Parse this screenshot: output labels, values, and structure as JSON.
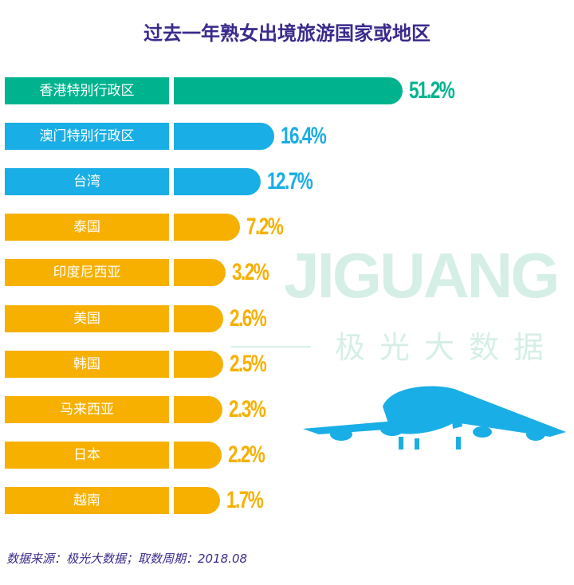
{
  "chart_data": {
    "type": "bar",
    "orientation": "horizontal",
    "title": "过去一年熟女出境旅游国家或地区",
    "categories": [
      "香港特别行政区",
      "澳门特别行政区",
      "台湾",
      "泰国",
      "印度尼西亚",
      "美国",
      "韩国",
      "马来西亚",
      "日本",
      "越南"
    ],
    "values": [
      51.2,
      16.4,
      12.7,
      7.2,
      3.2,
      2.6,
      2.5,
      2.3,
      2.2,
      1.7
    ],
    "labels": [
      "51.2%",
      "16.4%",
      "12.7%",
      "7.2%",
      "3.2%",
      "2.6%",
      "2.5%",
      "2.3%",
      "2.2%",
      "1.7%"
    ],
    "colors": [
      "#00b38f",
      "#1aaee6",
      "#1aaee6",
      "#f7b000",
      "#f7b000",
      "#f7b000",
      "#f7b000",
      "#f7b000",
      "#f7b000",
      "#f7b000"
    ],
    "unit": "%"
  },
  "watermark": {
    "brand": "JIGUANG",
    "brand_cn": "极光大数据"
  },
  "source": "数据来源：极光大数据；取数周期：2018.08"
}
